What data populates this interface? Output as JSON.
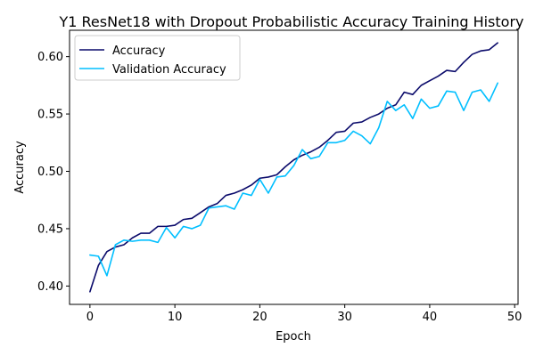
{
  "chart_data": {
    "type": "line",
    "title": "Y1 ResNet18 with Dropout Probabilistic Accuracy Training History",
    "xlabel": "Epoch",
    "ylabel": "Accuracy",
    "xlim": [
      -2.4,
      50.4
    ],
    "ylim": [
      0.384,
      0.623
    ],
    "x_ticks": [
      0,
      10,
      20,
      30,
      40,
      50
    ],
    "y_ticks": [
      0.4,
      0.45,
      0.5,
      0.55,
      0.6
    ],
    "x_tick_labels": [
      "0",
      "10",
      "20",
      "30",
      "40",
      "50"
    ],
    "y_tick_labels": [
      "0.40",
      "0.45",
      "0.50",
      "0.55",
      "0.60"
    ],
    "grid": false,
    "legend_position": "upper-left",
    "x": [
      0,
      1,
      2,
      3,
      4,
      5,
      6,
      7,
      8,
      9,
      10,
      11,
      12,
      13,
      14,
      15,
      16,
      17,
      18,
      19,
      20,
      21,
      22,
      23,
      24,
      25,
      26,
      27,
      28,
      29,
      30,
      31,
      32,
      33,
      34,
      35,
      36,
      37,
      38,
      39,
      40,
      41,
      42,
      43,
      44,
      45,
      46,
      47,
      48
    ],
    "series": [
      {
        "name": "Accuracy",
        "color": "#0b0b6b",
        "values": [
          0.395,
          0.418,
          0.43,
          0.434,
          0.436,
          0.442,
          0.446,
          0.446,
          0.452,
          0.452,
          0.453,
          0.458,
          0.459,
          0.464,
          0.469,
          0.472,
          0.479,
          0.481,
          0.484,
          0.488,
          0.494,
          0.495,
          0.497,
          0.504,
          0.51,
          0.514,
          0.517,
          0.521,
          0.527,
          0.534,
          0.535,
          0.542,
          0.543,
          0.547,
          0.55,
          0.555,
          0.558,
          0.569,
          0.567,
          0.575,
          0.579,
          0.583,
          0.588,
          0.587,
          0.595,
          0.602,
          0.605,
          0.606,
          0.612
        ]
      },
      {
        "name": "Validation Accuracy",
        "color": "#00bfff",
        "values": [
          0.427,
          0.426,
          0.409,
          0.436,
          0.44,
          0.439,
          0.44,
          0.44,
          0.438,
          0.451,
          0.442,
          0.452,
          0.45,
          0.453,
          0.468,
          0.469,
          0.47,
          0.467,
          0.481,
          0.479,
          0.493,
          0.481,
          0.495,
          0.496,
          0.505,
          0.519,
          0.511,
          0.513,
          0.525,
          0.525,
          0.527,
          0.535,
          0.531,
          0.524,
          0.538,
          0.561,
          0.553,
          0.558,
          0.546,
          0.563,
          0.555,
          0.557,
          0.57,
          0.569,
          0.553,
          0.569,
          0.571,
          0.561,
          0.577
        ]
      }
    ]
  }
}
